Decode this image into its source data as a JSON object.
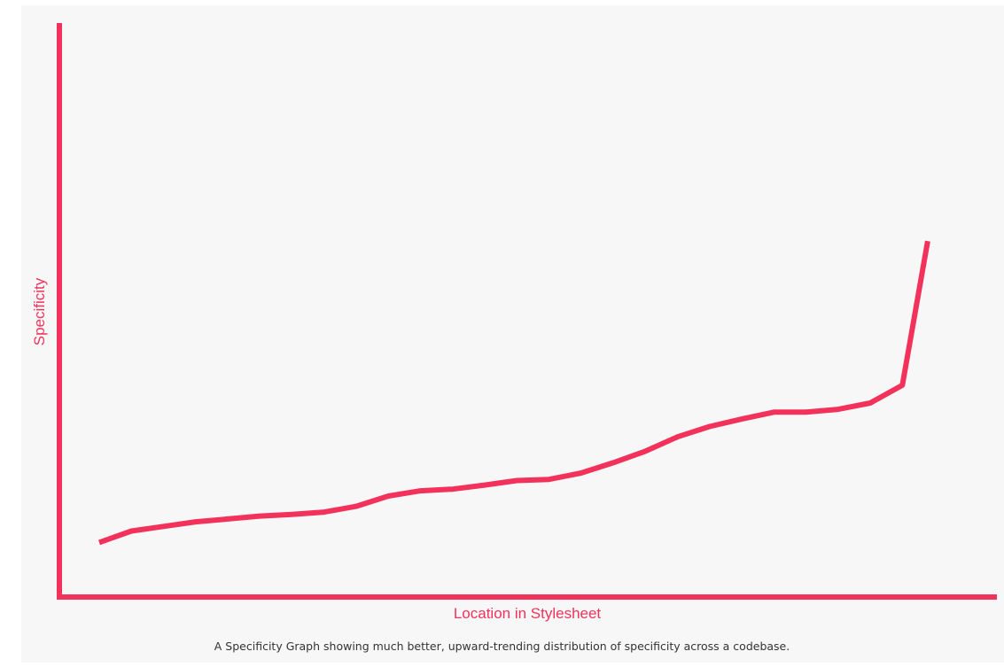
{
  "caption": "A Specificity Graph showing much better, upward-trending distribution of specificity across a codebase.",
  "colors": {
    "accent": "#f2325a",
    "background": "#f7f7f8"
  },
  "chart_data": {
    "type": "line",
    "title": "",
    "xlabel": "Location in Stylesheet",
    "ylabel": "Specificity",
    "grid": false,
    "legend": "none",
    "xlim": [
      0,
      100
    ],
    "ylim": [
      0,
      100
    ],
    "series": [
      {
        "x": [
          0,
          3.8,
          7.6,
          11.4,
          15.2,
          19.0,
          22.8,
          26.6,
          30.4,
          34.2,
          38.0,
          41.8,
          45.6,
          49.4,
          53.2,
          57.0,
          60.8,
          64.6,
          68.4,
          72.2,
          76.0,
          79.8,
          83.6,
          87.4,
          91.2,
          95.0,
          98.0
        ],
        "values": [
          9.5,
          11.5,
          12.3,
          13.1,
          13.6,
          14.1,
          14.4,
          14.8,
          15.8,
          17.6,
          18.5,
          18.8,
          19.5,
          20.3,
          20.5,
          21.6,
          23.4,
          25.4,
          27.9,
          29.7,
          31.0,
          32.2,
          32.2,
          32.7,
          33.8,
          36.9,
          62.0
        ]
      }
    ]
  }
}
